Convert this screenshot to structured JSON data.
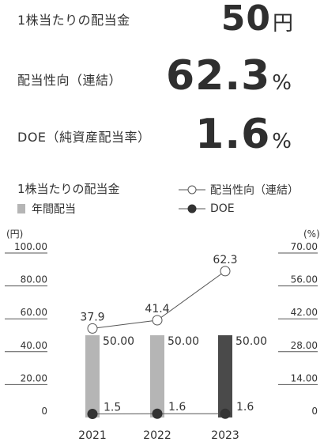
{
  "kpis": [
    {
      "label": "1株当たりの配当金",
      "value": "50",
      "unit": "円"
    },
    {
      "label": "配当性向（連結）",
      "value": "62.3",
      "unit": "%"
    },
    {
      "label": "DOE（純資産配当率）",
      "value": "1.6",
      "unit": "%"
    }
  ],
  "legend": {
    "title": "1株当たりの配当金",
    "bar_label": "年間配当",
    "line1_label": "配当性向（連結）",
    "line2_label": "DOE"
  },
  "colors": {
    "bar_past": "#b5b5b5",
    "bar_current": "#4a4a4a",
    "line": "#555555",
    "grid": "#555555"
  },
  "chart_data": {
    "type": "bar",
    "categories": [
      "2021",
      "2022",
      "2023"
    ],
    "left_axis": {
      "unit_label": "(円)",
      "ticks": [
        "100.00",
        "80.00",
        "60.00",
        "40.00",
        "20.00",
        "0"
      ],
      "range": [
        0,
        100
      ]
    },
    "right_axis": {
      "unit_label": "(%)",
      "ticks": [
        "70.00",
        "56.00",
        "42.00",
        "28.00",
        "14.00",
        "0"
      ],
      "range": [
        0,
        70
      ]
    },
    "series": [
      {
        "name": "年間配当",
        "kind": "bar",
        "axis": "left",
        "values": [
          50.0,
          50.0,
          50.0
        ],
        "labels": [
          "50.00",
          "50.00",
          "50.00"
        ]
      },
      {
        "name": "配当性向（連結）",
        "kind": "line",
        "axis": "right",
        "marker": "open",
        "values": [
          37.9,
          41.4,
          62.3
        ],
        "labels": [
          "37.9",
          "41.4",
          "62.3"
        ]
      },
      {
        "name": "DOE",
        "kind": "line",
        "axis": "right",
        "marker": "filled",
        "values": [
          1.5,
          1.6,
          1.6
        ],
        "labels": [
          "1.5",
          "1.6",
          "1.6"
        ]
      }
    ]
  }
}
